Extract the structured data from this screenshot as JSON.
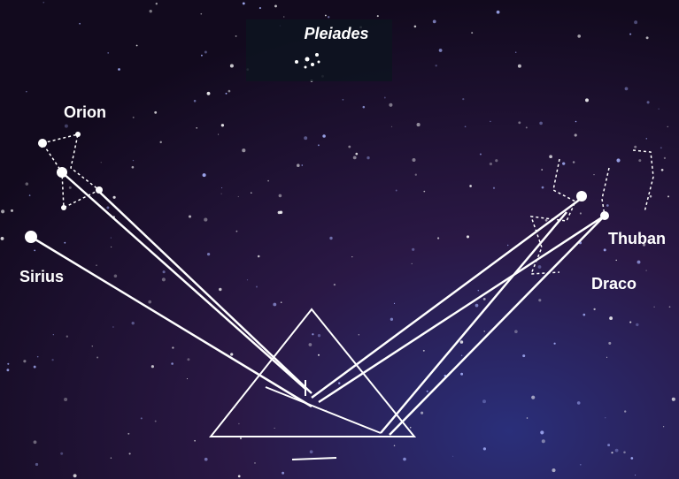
{
  "nodes": [
    {
      "label": "Pleiades"
    },
    {
      "label": "Orion"
    },
    {
      "label": "Sirius"
    },
    {
      "label": "Thuban"
    },
    {
      "label": "Draco"
    }
  ]
}
